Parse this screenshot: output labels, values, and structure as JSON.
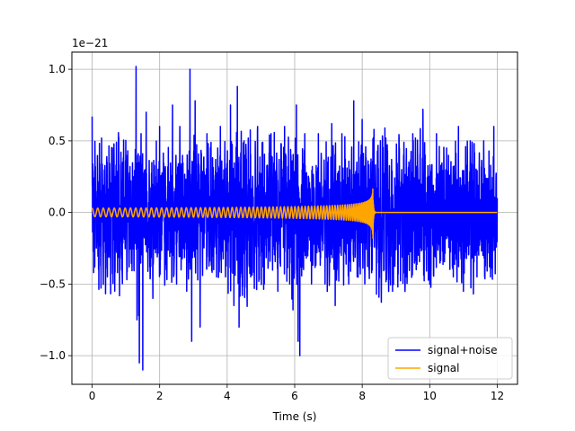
{
  "chart_data": {
    "type": "line",
    "title": "",
    "xlabel": "Time (s)",
    "ylabel": "",
    "offset_text": "1e−21",
    "xlim": [
      -0.6,
      12.6
    ],
    "ylim": [
      -1.2,
      1.12
    ],
    "xticks": [
      0,
      2,
      4,
      6,
      8,
      10,
      12
    ],
    "xtick_labels": [
      "0",
      "2",
      "4",
      "6",
      "8",
      "10",
      "12"
    ],
    "yticks": [
      -1.0,
      -0.5,
      0.0,
      0.5,
      1.0
    ],
    "ytick_labels": [
      "−1.0",
      "−0.5",
      "0.0",
      "0.5",
      "1.0"
    ],
    "grid": true,
    "legend_position": "lower-right",
    "series": [
      {
        "name": "signal+noise",
        "color": "#0000ff",
        "x_range": [
          0,
          12
        ],
        "noise_peaks": [
          [
            0.0,
            0.67
          ],
          [
            0.08,
            -0.38
          ],
          [
            0.28,
            0.52
          ],
          [
            0.45,
            -0.45
          ],
          [
            0.6,
            0.45
          ],
          [
            0.75,
            -0.42
          ],
          [
            0.9,
            0.35
          ],
          [
            1.1,
            -0.38
          ],
          [
            1.3,
            1.02
          ],
          [
            1.38,
            -0.72
          ],
          [
            1.45,
            0.55
          ],
          [
            1.33,
            -0.75
          ],
          [
            1.4,
            -1.05
          ],
          [
            1.5,
            -1.1
          ],
          [
            1.6,
            0.7
          ],
          [
            1.8,
            -0.6
          ],
          [
            2.0,
            0.6
          ],
          [
            2.2,
            -0.4
          ],
          [
            2.38,
            0.75
          ],
          [
            2.5,
            -0.5
          ],
          [
            2.6,
            0.6
          ],
          [
            2.8,
            -0.55
          ],
          [
            2.9,
            1.0
          ],
          [
            2.95,
            -0.9
          ],
          [
            3.05,
            0.78
          ],
          [
            3.2,
            -0.8
          ],
          [
            3.4,
            0.55
          ],
          [
            3.6,
            -0.4
          ],
          [
            3.8,
            0.6
          ],
          [
            3.95,
            -0.45
          ],
          [
            4.1,
            0.75
          ],
          [
            4.2,
            -0.65
          ],
          [
            4.3,
            0.88
          ],
          [
            4.35,
            -0.8
          ],
          [
            4.5,
            0.5
          ],
          [
            4.7,
            -0.45
          ],
          [
            4.9,
            0.6
          ],
          [
            5.1,
            -0.5
          ],
          [
            5.3,
            0.55
          ],
          [
            5.5,
            -0.55
          ],
          [
            5.7,
            0.6
          ],
          [
            5.85,
            -0.5
          ],
          [
            5.95,
            -0.68
          ],
          [
            6.05,
            0.75
          ],
          [
            6.1,
            -0.9
          ],
          [
            6.15,
            -1.0
          ],
          [
            6.3,
            0.55
          ],
          [
            6.5,
            -0.5
          ],
          [
            6.7,
            0.55
          ],
          [
            6.9,
            -0.5
          ],
          [
            7.1,
            0.62
          ],
          [
            7.2,
            -0.65
          ],
          [
            7.4,
            0.55
          ],
          [
            7.6,
            -0.5
          ],
          [
            7.75,
            0.78
          ],
          [
            7.85,
            -0.45
          ],
          [
            8.0,
            0.65
          ],
          [
            8.2,
            -0.4
          ],
          [
            8.35,
            0.58
          ],
          [
            8.5,
            -0.3
          ],
          [
            8.7,
            0.52
          ],
          [
            8.9,
            -0.55
          ],
          [
            9.1,
            0.45
          ],
          [
            9.3,
            -0.45
          ],
          [
            9.5,
            0.55
          ],
          [
            9.6,
            -0.4
          ],
          [
            9.8,
            0.72
          ],
          [
            10.0,
            -0.5
          ],
          [
            10.2,
            0.55
          ],
          [
            10.3,
            -0.35
          ],
          [
            10.5,
            0.45
          ],
          [
            10.7,
            -0.45
          ],
          [
            10.85,
            0.6
          ],
          [
            11.0,
            -0.55
          ],
          [
            11.2,
            0.5
          ],
          [
            11.4,
            -0.45
          ],
          [
            11.6,
            0.5
          ],
          [
            11.8,
            -0.45
          ],
          [
            11.9,
            0.6
          ],
          [
            12.0,
            0.1
          ]
        ]
      },
      {
        "name": "signal",
        "color": "#ffa500",
        "x_range": [
          0,
          12
        ],
        "merger_time": 8.32,
        "amplitude_start": 0.03,
        "amplitude_peak": 0.23,
        "freq_start_hz": 6.0
      }
    ]
  }
}
